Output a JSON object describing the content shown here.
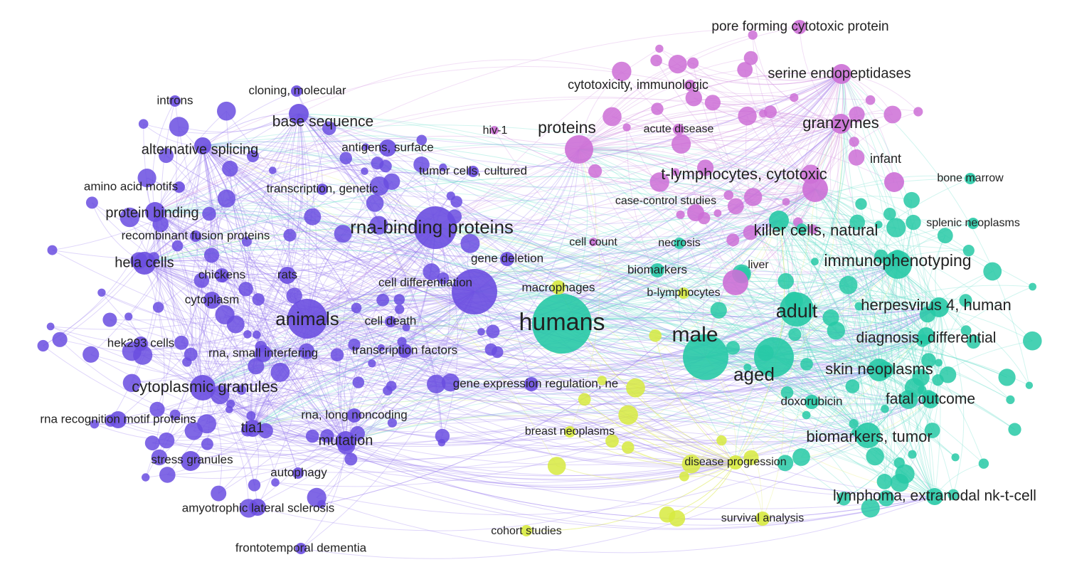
{
  "title": "",
  "clusters": [
    {
      "id": 1,
      "color": "#6a4ee0",
      "edge_color": "#9a7ff0"
    },
    {
      "id": 2,
      "color": "#cc6fd6",
      "edge_color": "#d89ae2"
    },
    {
      "id": 3,
      "color": "#27c9a6",
      "edge_color": "#6fe0cc"
    },
    {
      "id": 4,
      "color": "#d7ea3f",
      "edge_color": "#e6f07a"
    }
  ],
  "nodes": [
    {
      "id": "humans",
      "label": "humans",
      "cluster": 3,
      "weight": 10
    },
    {
      "id": "rna-binding-proteins",
      "label": "rna-binding proteins",
      "cluster": 1,
      "weight": 8
    },
    {
      "id": "male",
      "label": "male",
      "cluster": 3,
      "weight": 8
    },
    {
      "id": "animals",
      "label": "animals",
      "cluster": 1,
      "weight": 7
    },
    {
      "id": "adult",
      "label": "adult",
      "cluster": 3,
      "weight": 7
    },
    {
      "id": "aged",
      "label": "aged",
      "cluster": 3,
      "weight": 7
    },
    {
      "id": "proteins",
      "label": "proteins",
      "cluster": 2,
      "weight": 5
    },
    {
      "id": "immunophenotyping",
      "label": "immunophenotyping",
      "cluster": 3,
      "weight": 5
    },
    {
      "id": "t-lymphocytes-cytotoxic",
      "label": "t-lymphocytes, cytotoxic",
      "cluster": 2,
      "weight": 5
    },
    {
      "id": "cytoplasmic-granules",
      "label": "cytoplasmic granules",
      "cluster": 1,
      "weight": 5
    },
    {
      "id": "killer-cells-natural",
      "label": "killer cells, natural",
      "cluster": 3,
      "weight": 4
    },
    {
      "id": "herpesvirus-4-human",
      "label": "herpesvirus 4, human",
      "cluster": 3,
      "weight": 4
    },
    {
      "id": "base-sequence",
      "label": "base sequence",
      "cluster": 1,
      "weight": 4
    },
    {
      "id": "alternative-splicing",
      "label": "alternative splicing",
      "cluster": 1,
      "weight": 4
    },
    {
      "id": "protein-binding",
      "label": "protein binding",
      "cluster": 1,
      "weight": 4
    },
    {
      "id": "hela-cells",
      "label": "hela cells",
      "cluster": 1,
      "weight": 4
    },
    {
      "id": "granzymes",
      "label": "granzymes",
      "cluster": 2,
      "weight": 4
    },
    {
      "id": "serine-endopeptidases",
      "label": "serine endopeptidases",
      "cluster": 2,
      "weight": 4
    },
    {
      "id": "skin-neoplasms",
      "label": "skin neoplasms",
      "cluster": 3,
      "weight": 4
    },
    {
      "id": "biomarkers-tumor",
      "label": "biomarkers, tumor",
      "cluster": 3,
      "weight": 4
    },
    {
      "id": "diagnosis-differential",
      "label": "diagnosis, differential",
      "cluster": 3,
      "weight": 4
    },
    {
      "id": "fatal-outcome",
      "label": "fatal outcome",
      "cluster": 3,
      "weight": 4
    },
    {
      "id": "lymphoma-extranodal-nk-t-cell",
      "label": "lymphoma, extranodal nk-t-cell",
      "cluster": 3,
      "weight": 4
    },
    {
      "id": "mutation",
      "label": "mutation",
      "cluster": 1,
      "weight": 4
    },
    {
      "id": "tia1",
      "label": "tia1",
      "cluster": 1,
      "weight": 4
    },
    {
      "id": "cell-differentiation",
      "label": "cell differentiation",
      "cluster": 1,
      "weight": 5
    },
    {
      "id": "pore-forming-cytotoxic-protein",
      "label": "pore forming cytotoxic protein",
      "cluster": 2,
      "weight": 3
    },
    {
      "id": "cytotoxicity-immunologic",
      "label": "cytotoxicity, immunologic",
      "cluster": 2,
      "weight": 3
    },
    {
      "id": "cloning-molecular",
      "label": "cloning, molecular",
      "cluster": 1,
      "weight": 3
    },
    {
      "id": "introns",
      "label": "introns",
      "cluster": 1,
      "weight": 3
    },
    {
      "id": "antigens-surface",
      "label": "antigens, surface",
      "cluster": 1,
      "weight": 3
    },
    {
      "id": "tumor-cells-cultured",
      "label": "tumor cells, cultured",
      "cluster": 1,
      "weight": 3
    },
    {
      "id": "transcription-genetic",
      "label": "transcription, genetic",
      "cluster": 1,
      "weight": 3
    },
    {
      "id": "amino-acid-motifs",
      "label": "amino acid motifs",
      "cluster": 1,
      "weight": 3
    },
    {
      "id": "recombinant-fusion-proteins",
      "label": "recombinant fusion proteins",
      "cluster": 1,
      "weight": 3
    },
    {
      "id": "chickens",
      "label": "chickens",
      "cluster": 1,
      "weight": 3
    },
    {
      "id": "rats",
      "label": "rats",
      "cluster": 1,
      "weight": 3
    },
    {
      "id": "cytoplasm",
      "label": "cytoplasm",
      "cluster": 1,
      "weight": 3
    },
    {
      "id": "cell-death",
      "label": "cell death",
      "cluster": 1,
      "weight": 3
    },
    {
      "id": "hek293-cells",
      "label": "hek293 cells",
      "cluster": 1,
      "weight": 3
    },
    {
      "id": "rna-small-interfering",
      "label": "rna, small interfering",
      "cluster": 1,
      "weight": 3
    },
    {
      "id": "transcription-factors",
      "label": "transcription factors",
      "cluster": 1,
      "weight": 3
    },
    {
      "id": "gene-expression-regulation-ne",
      "label": "gene expression regulation, ne",
      "cluster": 1,
      "weight": 3
    },
    {
      "id": "rna-recognition-motif-proteins",
      "label": "rna recognition motif proteins",
      "cluster": 1,
      "weight": 3
    },
    {
      "id": "rna-long-noncoding",
      "label": "rna, long noncoding",
      "cluster": 1,
      "weight": 3
    },
    {
      "id": "stress-granules",
      "label": "stress granules",
      "cluster": 1,
      "weight": 3
    },
    {
      "id": "autophagy",
      "label": "autophagy",
      "cluster": 1,
      "weight": 2
    },
    {
      "id": "amyotrophic-lateral-sclerosis",
      "label": "amyotrophic lateral sclerosis",
      "cluster": 1,
      "weight": 3
    },
    {
      "id": "frontotemporal-dementia",
      "label": "frontotemporal dementia",
      "cluster": 1,
      "weight": 2
    },
    {
      "id": "gene-deletion",
      "label": "gene deletion",
      "cluster": 1,
      "weight": 2
    },
    {
      "id": "hiv-1",
      "label": "hiv-1",
      "cluster": 2,
      "weight": 2
    },
    {
      "id": "acute-disease",
      "label": "acute disease",
      "cluster": 2,
      "weight": 2
    },
    {
      "id": "infant",
      "label": "infant",
      "cluster": 2,
      "weight": 3
    },
    {
      "id": "case-control-studies",
      "label": "case-control studies",
      "cluster": 2,
      "weight": 3
    },
    {
      "id": "cell-count",
      "label": "cell count",
      "cluster": 2,
      "weight": 2
    },
    {
      "id": "necrosis",
      "label": "necrosis",
      "cluster": 3,
      "weight": 2
    },
    {
      "id": "biomarkers",
      "label": "biomarkers",
      "cluster": 3,
      "weight": 2
    },
    {
      "id": "liver",
      "label": "liver",
      "cluster": 2,
      "weight": 3
    },
    {
      "id": "macrophages",
      "label": "macrophages",
      "cluster": 4,
      "weight": 3
    },
    {
      "id": "b-lymphocytes",
      "label": "b-lymphocytes",
      "cluster": 4,
      "weight": 3
    },
    {
      "id": "bone-marrow",
      "label": "bone marrow",
      "cluster": 3,
      "weight": 3
    },
    {
      "id": "splenic-neoplasms",
      "label": "splenic neoplasms",
      "cluster": 3,
      "weight": 3
    },
    {
      "id": "doxorubicin",
      "label": "doxorubicin",
      "cluster": 3,
      "weight": 3
    },
    {
      "id": "breast-neoplasms",
      "label": "breast neoplasms",
      "cluster": 4,
      "weight": 2
    },
    {
      "id": "disease-progression",
      "label": "disease progression",
      "cluster": 4,
      "weight": 4
    },
    {
      "id": "survival-analysis",
      "label": "survival analysis",
      "cluster": 4,
      "weight": 3
    },
    {
      "id": "cohort-studies",
      "label": "cohort studies",
      "cluster": 4,
      "weight": 2
    }
  ]
}
